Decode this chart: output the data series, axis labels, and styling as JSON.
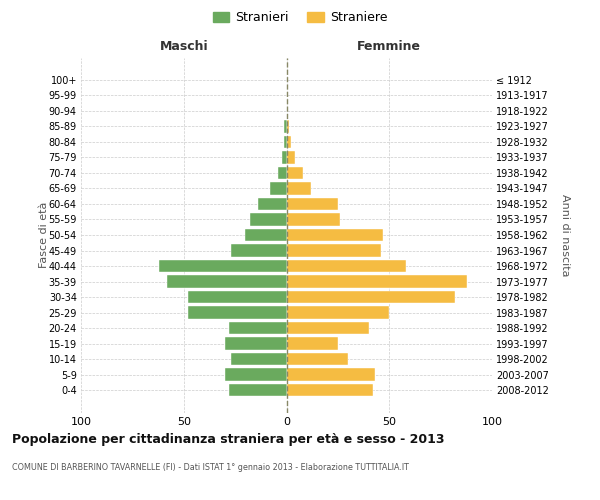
{
  "age_groups": [
    "0-4",
    "5-9",
    "10-14",
    "15-19",
    "20-24",
    "25-29",
    "30-34",
    "35-39",
    "40-44",
    "45-49",
    "50-54",
    "55-59",
    "60-64",
    "65-69",
    "70-74",
    "75-79",
    "80-84",
    "85-89",
    "90-94",
    "95-99",
    "100+"
  ],
  "birth_years": [
    "2008-2012",
    "2003-2007",
    "1998-2002",
    "1993-1997",
    "1988-1992",
    "1983-1987",
    "1978-1982",
    "1973-1977",
    "1968-1972",
    "1963-1967",
    "1958-1962",
    "1953-1957",
    "1948-1952",
    "1943-1947",
    "1938-1942",
    "1933-1937",
    "1928-1932",
    "1923-1927",
    "1918-1922",
    "1913-1917",
    "≤ 1912"
  ],
  "maschi": [
    28,
    30,
    27,
    30,
    28,
    48,
    48,
    58,
    62,
    27,
    20,
    18,
    14,
    8,
    4,
    2,
    1,
    1,
    0,
    0,
    0
  ],
  "femmine": [
    42,
    43,
    30,
    25,
    40,
    50,
    82,
    88,
    58,
    46,
    47,
    26,
    25,
    12,
    8,
    4,
    2,
    1,
    0,
    0,
    0
  ],
  "maschi_color": "#6aaa5e",
  "femmine_color": "#f5bc42",
  "background_color": "#ffffff",
  "grid_color": "#cccccc",
  "dashed_color": "#888866",
  "title": "Popolazione per cittadinanza straniera per età e sesso - 2013",
  "subtitle": "COMUNE DI BARBERINO TAVARNELLE (FI) - Dati ISTAT 1° gennaio 2013 - Elaborazione TUTTITALIA.IT",
  "xlabel_left": "Maschi",
  "xlabel_right": "Femmine",
  "ylabel_left": "Fasce di età",
  "ylabel_right": "Anni di nascita",
  "legend_maschi": "Stranieri",
  "legend_femmine": "Straniere",
  "xlim": 100
}
